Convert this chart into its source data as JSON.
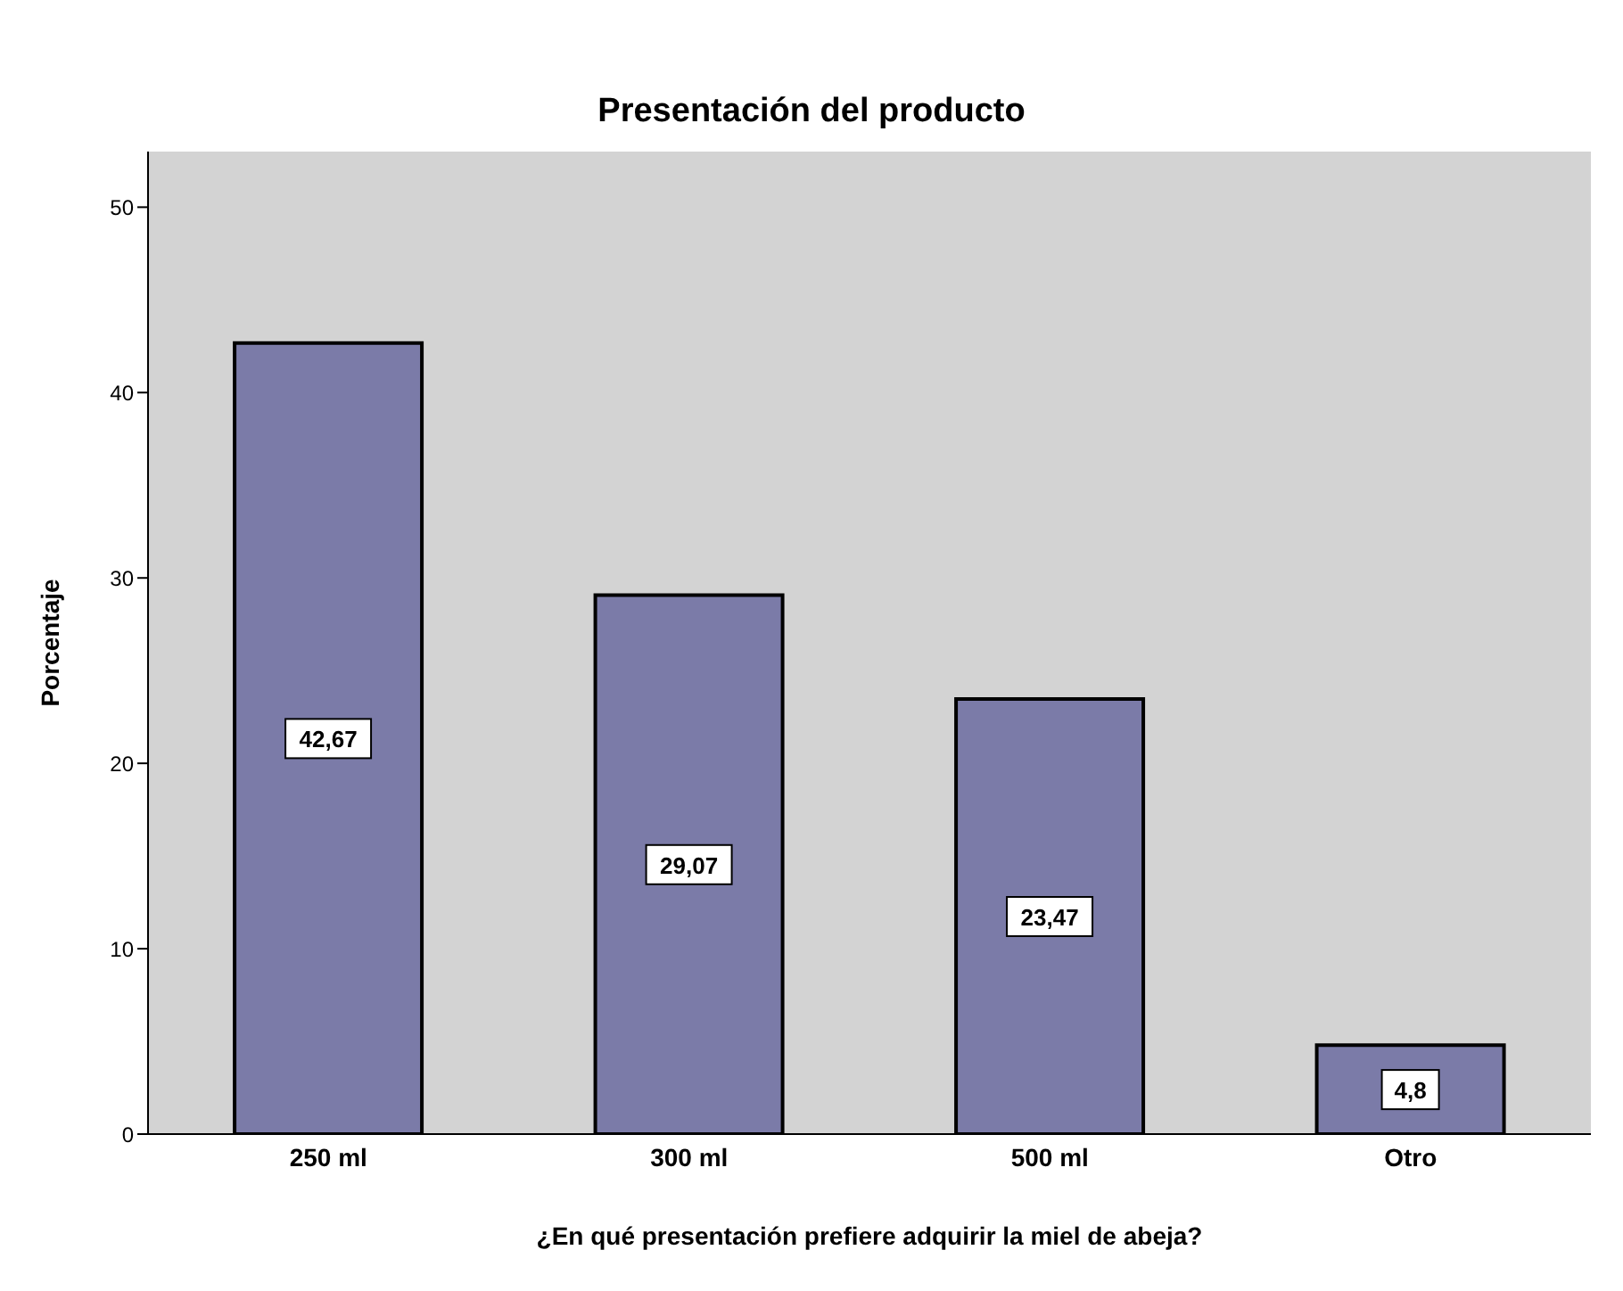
{
  "chart_data": {
    "type": "bar",
    "title": "Presentación del producto",
    "xlabel": "¿En qué presentación prefiere adquirir la miel de abeja?",
    "ylabel": "Porcentaje",
    "categories": [
      "250 ml",
      "300 ml",
      "500 ml",
      "Otro"
    ],
    "values": [
      42.67,
      29.07,
      23.47,
      4.8
    ],
    "value_labels": [
      "42,67",
      "29,07",
      "23,47",
      "4,8"
    ],
    "color": "#7b7ba8",
    "ylim": [
      0,
      53
    ],
    "yticks": [
      0,
      10,
      20,
      30,
      40,
      50
    ],
    "grid": false
  }
}
